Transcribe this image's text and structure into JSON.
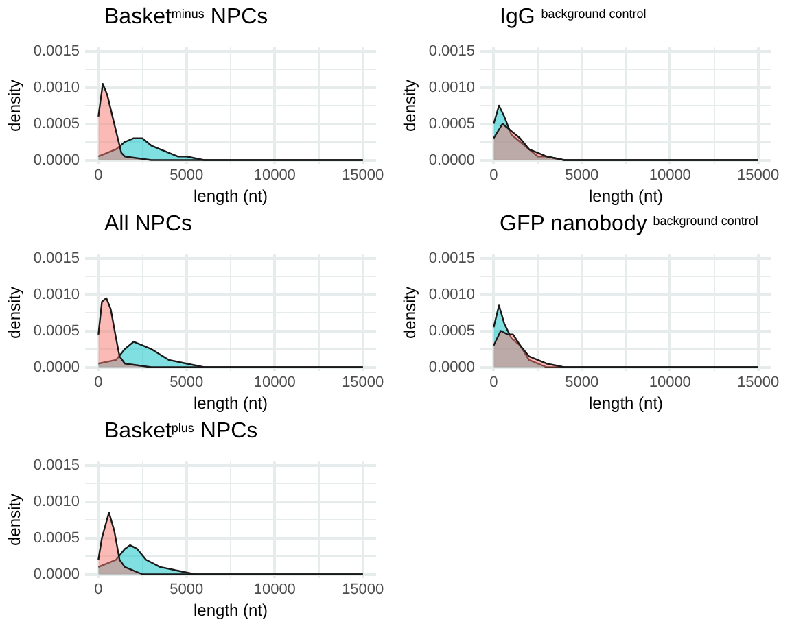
{
  "chart_data": [
    {
      "type": "area",
      "title": "Basket$^{minus}$ NPCs",
      "xlabel": "length (nt)",
      "ylabel": "density",
      "grid": true,
      "legend": false,
      "xlim": [
        -750,
        15750
      ],
      "xticks": [
        0,
        {
          "value": 2500,
          "label": null
        },
        5000,
        {
          "value": 7500,
          "label": null
        },
        10000,
        {
          "value": 12500,
          "label": null
        },
        15000
      ],
      "ylim": [
        -5e-05,
        0.00155
      ],
      "yticks": [
        {
          "value": 0,
          "label": "0.0000"
        },
        {
          "value": 0.00025,
          "label": null
        },
        {
          "value": 0.0005,
          "label": "0.0005"
        },
        {
          "value": 0.00075,
          "label": null
        },
        {
          "value": 0.001,
          "label": "0.0010"
        },
        {
          "value": 0.00125,
          "label": null
        },
        {
          "value": 0.0015,
          "label": "0.0015"
        }
      ],
      "series": [
        {
          "color": "#f8766d",
          "x": [
            0,
            250,
            500,
            800,
            1100,
            1300,
            1500,
            3000,
            15000
          ],
          "values": [
            0.0006,
            0.00105,
            0.0009,
            0.0006,
            0.0003,
            0.0001,
            5e-05,
            0,
            0
          ]
        },
        {
          "color": "#00bfc4",
          "x": [
            0,
            500,
            1000,
            1500,
            2000,
            2500,
            3000,
            3500,
            4000,
            4500,
            5000,
            6000,
            15000
          ],
          "values": [
            5e-05,
            0.0001,
            0.00015,
            0.00025,
            0.0003,
            0.0003,
            0.0002,
            0.00015,
            0.0001,
            5e-05,
            5e-05,
            0,
            0
          ]
        }
      ]
    },
    {
      "type": "area",
      "title": "IgG $^{background control}$",
      "xlabel": "length (nt)",
      "ylabel": "density",
      "grid": true,
      "legend": false,
      "xlim": [
        -750,
        15750
      ],
      "xticks": [
        0,
        {
          "value": 2500,
          "label": null
        },
        5000,
        {
          "value": 7500,
          "label": null
        },
        10000,
        {
          "value": 12500,
          "label": null
        },
        15000
      ],
      "ylim": [
        -5e-05,
        0.00155
      ],
      "yticks": [
        {
          "value": 0,
          "label": "0.0000"
        },
        {
          "value": 0.00025,
          "label": null
        },
        {
          "value": 0.0005,
          "label": "0.0005"
        },
        {
          "value": 0.00075,
          "label": null
        },
        {
          "value": 0.001,
          "label": "0.0010"
        },
        {
          "value": 0.00125,
          "label": null
        },
        {
          "value": 0.0015,
          "label": "0.0015"
        }
      ],
      "series": [
        {
          "color": "#f8766d",
          "x": [
            0,
            500,
            1000,
            1500,
            2000,
            2500,
            3000,
            4000,
            15000
          ],
          "values": [
            0.0003,
            0.0005,
            0.0004,
            0.0003,
            0.00015,
            0.0001,
            5e-05,
            0,
            0
          ]
        },
        {
          "color": "#00bfc4",
          "x": [
            0,
            300,
            600,
            1000,
            1500,
            2000,
            2500,
            3000,
            4000,
            15000
          ],
          "values": [
            0.0005,
            0.00075,
            0.0006,
            0.00035,
            0.00025,
            0.00015,
            5e-05,
            5e-05,
            0,
            0
          ]
        }
      ]
    },
    {
      "type": "area",
      "title": "All NPCs",
      "xlabel": "length (nt)",
      "ylabel": "density",
      "grid": true,
      "legend": false,
      "xlim": [
        -750,
        15750
      ],
      "xticks": [
        0,
        {
          "value": 2500,
          "label": null
        },
        5000,
        {
          "value": 7500,
          "label": null
        },
        10000,
        {
          "value": 12500,
          "label": null
        },
        15000
      ],
      "ylim": [
        -5e-05,
        0.00155
      ],
      "yticks": [
        {
          "value": 0,
          "label": "0.0000"
        },
        {
          "value": 0.00025,
          "label": null
        },
        {
          "value": 0.0005,
          "label": "0.0005"
        },
        {
          "value": 0.00075,
          "label": null
        },
        {
          "value": 0.001,
          "label": "0.0010"
        },
        {
          "value": 0.00125,
          "label": null
        },
        {
          "value": 0.0015,
          "label": "0.0015"
        }
      ],
      "series": [
        {
          "color": "#f8766d",
          "x": [
            0,
            200,
            450,
            700,
            1000,
            1200,
            1500,
            3000,
            15000
          ],
          "values": [
            0.00045,
            0.0009,
            0.00095,
            0.0008,
            0.0004,
            0.00015,
            5e-05,
            0,
            0
          ]
        },
        {
          "color": "#00bfc4",
          "x": [
            0,
            1000,
            1500,
            2000,
            2500,
            3000,
            4000,
            5000,
            6000,
            15000
          ],
          "values": [
            5e-05,
            0.0001,
            0.00025,
            0.00035,
            0.0003,
            0.00025,
            0.0001,
            5e-05,
            0,
            0
          ]
        }
      ]
    },
    {
      "type": "area",
      "title": "GFP nanobody $^{background control}$",
      "xlabel": "length (nt)",
      "ylabel": "density",
      "grid": true,
      "legend": false,
      "xlim": [
        -750,
        15750
      ],
      "xticks": [
        0,
        {
          "value": 2500,
          "label": null
        },
        5000,
        {
          "value": 7500,
          "label": null
        },
        10000,
        {
          "value": 12500,
          "label": null
        },
        15000
      ],
      "ylim": [
        -5e-05,
        0.00155
      ],
      "yticks": [
        {
          "value": 0,
          "label": "0.0000"
        },
        {
          "value": 0.00025,
          "label": null
        },
        {
          "value": 0.0005,
          "label": "0.0005"
        },
        {
          "value": 0.00075,
          "label": null
        },
        {
          "value": 0.001,
          "label": "0.0010"
        },
        {
          "value": 0.00125,
          "label": null
        },
        {
          "value": 0.0015,
          "label": "0.0015"
        }
      ],
      "series": [
        {
          "color": "#f8766d",
          "x": [
            0,
            400,
            800,
            1100,
            1500,
            2000,
            2500,
            3000,
            4000,
            15000
          ],
          "values": [
            0.0003,
            0.0005,
            0.00045,
            0.00045,
            0.0003,
            0.00015,
            0.0001,
            5e-05,
            0,
            0
          ]
        },
        {
          "color": "#00bfc4",
          "x": [
            0,
            300,
            600,
            1000,
            1500,
            2000,
            2500,
            3000,
            15000
          ],
          "values": [
            0.00055,
            0.00085,
            0.0006,
            0.0004,
            0.0003,
            0.0001,
            5e-05,
            0,
            0
          ]
        }
      ]
    },
    {
      "type": "area",
      "title": "Basket$^{plus}$ NPCs",
      "xlabel": "length (nt)",
      "ylabel": "density",
      "grid": true,
      "legend": false,
      "xlim": [
        -750,
        15750
      ],
      "xticks": [
        0,
        {
          "value": 2500,
          "label": null
        },
        5000,
        {
          "value": 7500,
          "label": null
        },
        10000,
        {
          "value": 12500,
          "label": null
        },
        15000
      ],
      "ylim": [
        -5e-05,
        0.00155
      ],
      "yticks": [
        {
          "value": 0,
          "label": "0.0000"
        },
        {
          "value": 0.00025,
          "label": null
        },
        {
          "value": 0.0005,
          "label": "0.0005"
        },
        {
          "value": 0.00075,
          "label": null
        },
        {
          "value": 0.001,
          "label": "0.0010"
        },
        {
          "value": 0.00125,
          "label": null
        },
        {
          "value": 0.0015,
          "label": "0.0015"
        }
      ],
      "series": [
        {
          "color": "#f8766d",
          "x": [
            0,
            200,
            600,
            900,
            1200,
            1500,
            2500,
            15000
          ],
          "values": [
            0.0002,
            0.0005,
            0.00085,
            0.0006,
            0.0002,
            0.0001,
            0,
            0
          ]
        },
        {
          "color": "#00bfc4",
          "x": [
            0,
            500,
            1000,
            1500,
            1800,
            2200,
            2700,
            3500,
            4500,
            5500,
            15000
          ],
          "values": [
            0.0001,
            0.00015,
            0.0002,
            0.00035,
            0.0004,
            0.00035,
            0.0002,
            0.0001,
            5e-05,
            0,
            0
          ]
        }
      ]
    }
  ]
}
